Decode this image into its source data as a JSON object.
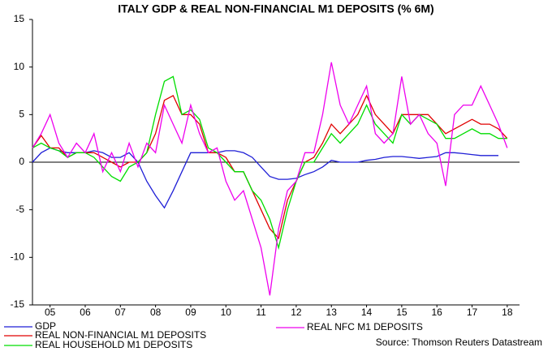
{
  "chart_data": {
    "type": "line",
    "title": "ITALY GDP & REAL NON-FINANCIAL M1 DEPOSITS (% 6M)",
    "source": "Source: Thomson Reuters Datastream",
    "x": [
      2005,
      2005.25,
      2005.5,
      2005.75,
      2006,
      2006.25,
      2006.5,
      2006.75,
      2007,
      2007.25,
      2007.5,
      2007.75,
      2008,
      2008.25,
      2008.5,
      2008.75,
      2009,
      2009.25,
      2009.5,
      2009.75,
      2010,
      2010.25,
      2010.5,
      2010.75,
      2011,
      2011.25,
      2011.5,
      2011.75,
      2012,
      2012.25,
      2012.5,
      2012.75,
      2013,
      2013.25,
      2013.5,
      2013.75,
      2014,
      2014.25,
      2014.5,
      2014.75,
      2015,
      2015.25,
      2015.5,
      2015.75,
      2016,
      2016.25,
      2016.5,
      2016.75,
      2017,
      2017.25,
      2017.5,
      2017.75,
      2018,
      2018.25,
      2018.5
    ],
    "xlim": [
      2005,
      2018.85
    ],
    "xticks": [
      {
        "value": 2005.5,
        "label": "05"
      },
      {
        "value": 2006.5,
        "label": "06"
      },
      {
        "value": 2007.5,
        "label": "07"
      },
      {
        "value": 2008.5,
        "label": "08"
      },
      {
        "value": 2009.5,
        "label": "09"
      },
      {
        "value": 2010.5,
        "label": "10"
      },
      {
        "value": 2011.5,
        "label": "11"
      },
      {
        "value": 2012.5,
        "label": "12"
      },
      {
        "value": 2013.5,
        "label": "13"
      },
      {
        "value": 2014.5,
        "label": "14"
      },
      {
        "value": 2015.5,
        "label": "15"
      },
      {
        "value": 2016.5,
        "label": "16"
      },
      {
        "value": 2017.5,
        "label": "17"
      },
      {
        "value": 2018.5,
        "label": "18"
      }
    ],
    "ylim": [
      -15,
      15
    ],
    "yticks": [
      -15,
      -10,
      -5,
      0,
      5,
      10,
      15
    ],
    "series": [
      {
        "name": "GDP",
        "color": "#1f1fd6",
        "values": [
          0,
          1,
          1.5,
          1.2,
          1,
          1,
          1,
          1.2,
          1,
          0.5,
          0.5,
          1,
          0,
          -2,
          -3.5,
          -4.8,
          -3,
          -1,
          1,
          1,
          1,
          1,
          1.2,
          1.2,
          1,
          0.5,
          -0.5,
          -1.5,
          -1.8,
          -1.8,
          -1.7,
          -1.3,
          -1,
          -0.5,
          0.2,
          0,
          0,
          0,
          0.2,
          0.3,
          0.5,
          0.6,
          0.6,
          0.5,
          0.4,
          0.5,
          0.6,
          1,
          1,
          0.9,
          0.8,
          0.7,
          0.7,
          0.7,
          null
        ]
      },
      {
        "name": "REAL NON-FINANCIAL M1 DEPOSITS",
        "color": "#e00000",
        "values": [
          1.5,
          2.8,
          1.5,
          1.5,
          0.5,
          1,
          1,
          1,
          0.5,
          0,
          -0.5,
          0,
          0,
          1,
          3,
          6.5,
          7,
          5,
          5,
          4,
          1,
          1,
          0.5,
          -1,
          -1,
          -3,
          -5,
          -7,
          -8,
          -4,
          -2,
          0,
          0.5,
          2,
          4,
          3,
          4,
          5,
          7,
          5,
          4,
          3,
          5,
          5,
          5,
          5,
          4,
          3,
          3.5,
          4,
          4.5,
          4,
          4,
          3.5,
          2.5
        ]
      },
      {
        "name": "REAL HOUSEHOLD M1 DEPOSITS",
        "color": "#00dd00",
        "values": [
          1.5,
          2,
          1.5,
          1.2,
          0.5,
          1,
          1,
          0.5,
          -0.5,
          -1.5,
          -2,
          -0.5,
          0,
          1,
          5,
          8.5,
          9,
          5,
          5.5,
          4.5,
          1.5,
          1,
          0,
          -1,
          -1,
          -3,
          -4,
          -6,
          -9,
          -5,
          -2,
          0,
          0,
          1.5,
          3,
          2,
          3,
          4,
          6,
          4,
          3,
          2,
          5,
          4,
          5,
          4.5,
          4,
          2.5,
          2.5,
          3,
          3.5,
          3,
          3,
          2.5,
          2.5
        ]
      },
      {
        "name": "REAL NFC M1 DEPOSITS",
        "color": "#ee00ee",
        "values": [
          1.5,
          3,
          5,
          2,
          0.5,
          2,
          1,
          3,
          -1,
          1,
          -1,
          2,
          -0.5,
          2,
          1,
          6,
          4,
          2,
          6,
          3,
          1,
          1.5,
          -2,
          -4,
          -3,
          -6,
          -9,
          -14,
          -7,
          -3,
          -2,
          1,
          1,
          5,
          10.5,
          6,
          4,
          6,
          8,
          3,
          2,
          3,
          9,
          4,
          5,
          3,
          2,
          -2.5,
          5,
          6,
          6,
          8,
          6,
          4,
          1.5
        ]
      }
    ]
  }
}
